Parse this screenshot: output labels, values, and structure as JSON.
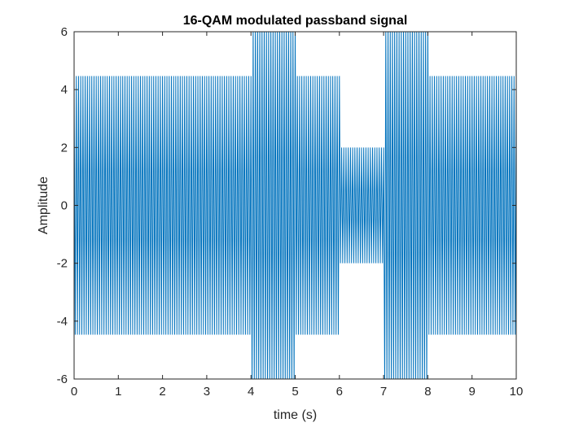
{
  "chart_data": {
    "type": "line",
    "title": "16-QAM modulated passband signal",
    "xlabel": "time (s)",
    "ylabel": "Amplitude",
    "xlim": [
      0,
      10
    ],
    "ylim": [
      -6,
      6
    ],
    "xticks": [
      "0",
      "1",
      "2",
      "3",
      "4",
      "5",
      "6",
      "7",
      "8",
      "9",
      "10"
    ],
    "yticks": [
      "-6",
      "-4",
      "-2",
      "0",
      "2",
      "4",
      "6"
    ],
    "grid": false,
    "box": true,
    "series": [
      {
        "color": "#0072BD",
        "carrier_cycles_per_second": 20,
        "segments": [
          {
            "t_start": 0,
            "t_end": 4,
            "envelope": 4.47
          },
          {
            "t_start": 4,
            "t_end": 5,
            "envelope": 6.32
          },
          {
            "t_start": 5,
            "t_end": 6,
            "envelope": 4.47
          },
          {
            "t_start": 6,
            "t_end": 7,
            "envelope": 2.0
          },
          {
            "t_start": 7,
            "t_end": 8,
            "envelope": 6.32
          },
          {
            "t_start": 8,
            "t_end": 10,
            "envelope": 4.47
          }
        ]
      }
    ]
  }
}
